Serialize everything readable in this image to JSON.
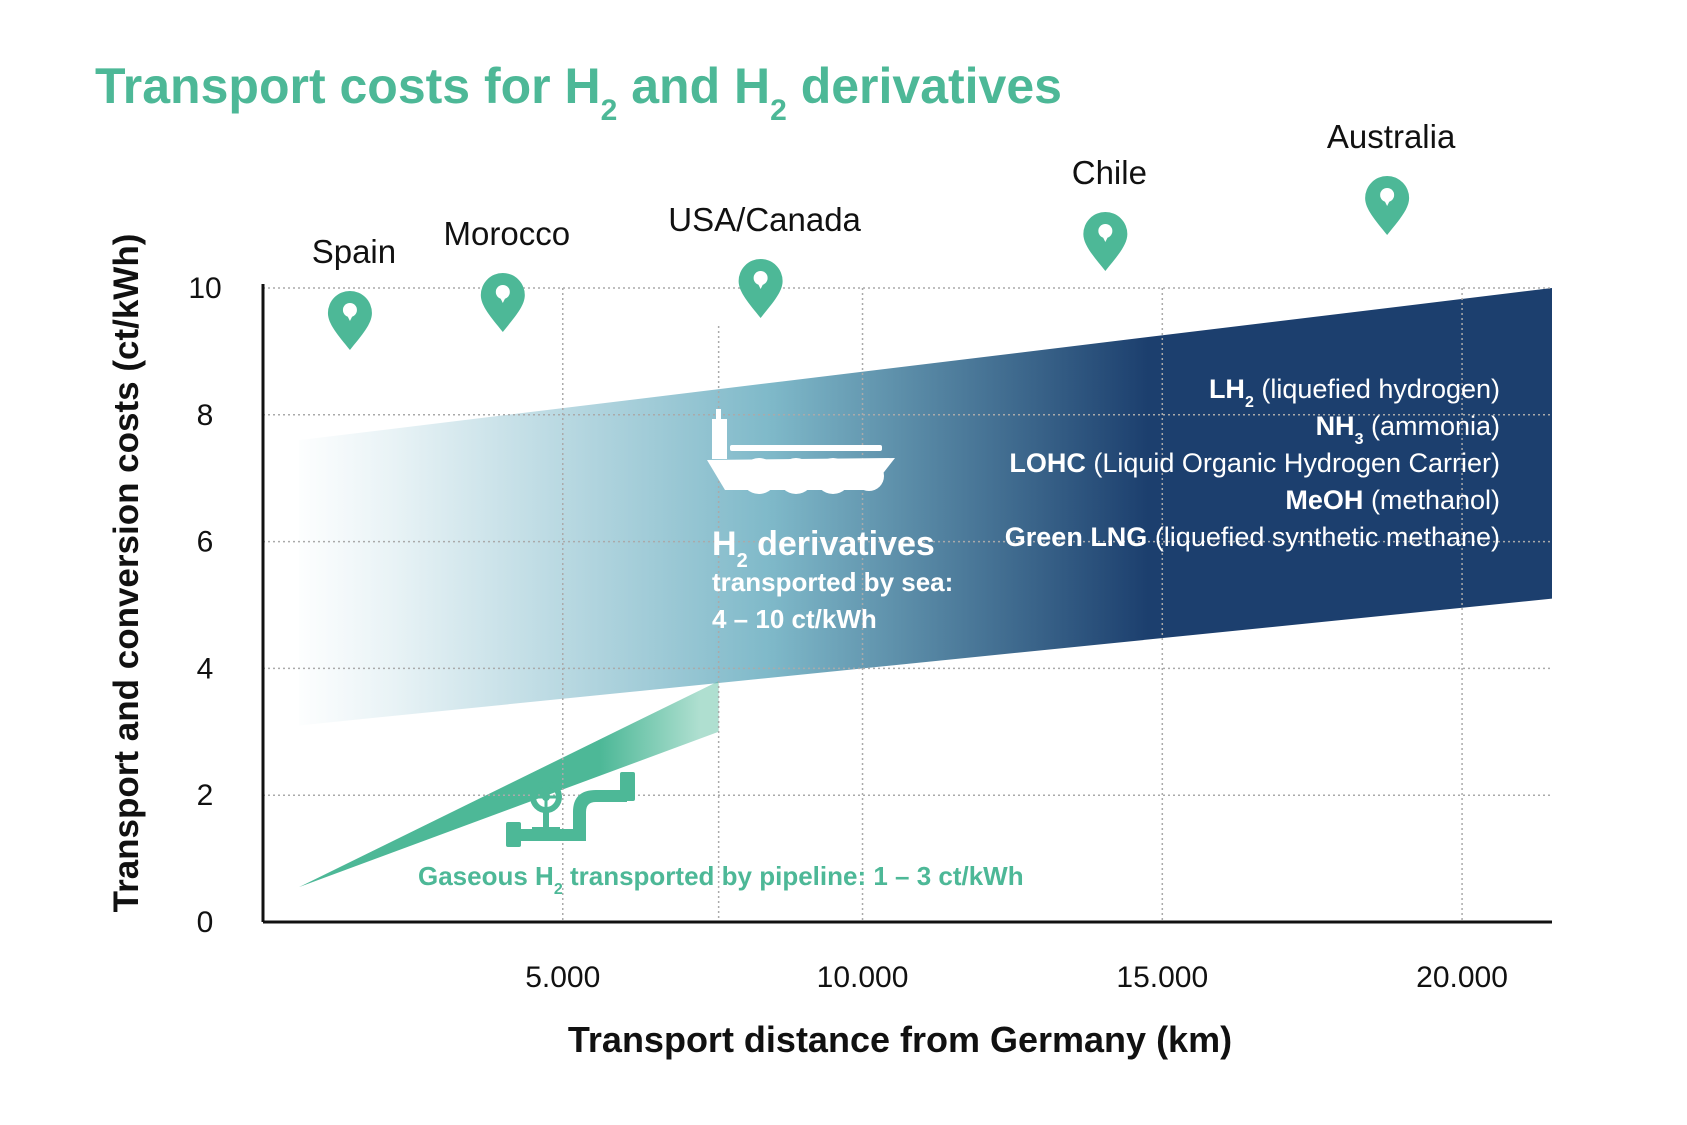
{
  "chart_data": {
    "type": "area",
    "title": {
      "part1": "Transport costs for H",
      "sub1": "2",
      "part2": " and H",
      "sub2": "2",
      "part3": " derivatives"
    },
    "xlabel": "Transport distance from Germany (km)",
    "ylabel": "Transport and conversion costs (ct/kWh)",
    "xlim": [
      0,
      21500
    ],
    "ylim": [
      0,
      10
    ],
    "x_ticks": [
      {
        "value": 5000,
        "label": "5.000"
      },
      {
        "value": 10000,
        "label": "10.000"
      },
      {
        "value": 15000,
        "label": "15.000"
      },
      {
        "value": 20000,
        "label": "20.000"
      }
    ],
    "y_ticks": [
      {
        "value": 0,
        "label": "0"
      },
      {
        "value": 2,
        "label": "2"
      },
      {
        "value": 4,
        "label": "4"
      },
      {
        "value": 6,
        "label": "6"
      },
      {
        "value": 8,
        "label": "8"
      },
      {
        "value": 10,
        "label": "10"
      }
    ],
    "grid": true,
    "series": [
      {
        "name": "H2 derivatives transported by sea",
        "kind": "band",
        "color_start": "#ffffff",
        "color_end": "#1c3f6e",
        "x": [
          600,
          21500
        ],
        "upper": [
          7.6,
          10.0
        ],
        "lower": [
          3.1,
          5.1
        ]
      },
      {
        "name": "Gaseous H2 transported by pipeline",
        "kind": "wedge",
        "color": "#4db897",
        "x": [
          600,
          7600
        ],
        "upper": [
          0.55,
          3.8
        ],
        "lower": [
          0.55,
          3.0
        ]
      }
    ],
    "locations": [
      {
        "name": "Spain",
        "x": 1450
      },
      {
        "name": "Morocco",
        "x": 4000
      },
      {
        "name": "USA/Canada",
        "x": 8300
      },
      {
        "name": "Chile",
        "x": 14050
      },
      {
        "name": "Australia",
        "x": 18750
      }
    ],
    "annotations": {
      "sea": {
        "h": "H",
        "sub": "2",
        "rest": " derivatives",
        "line2": "transported by sea:",
        "line3": "4 – 10 ct/kWh"
      },
      "pipeline": {
        "pre": "Gaseous H",
        "sub": "2",
        "post": " transported by pipeline: 1 – 3 ct/kWh"
      },
      "derivatives_list": [
        {
          "bold": "LH",
          "sub": "2",
          "normal": " (liquefied hydrogen)"
        },
        {
          "bold": "NH",
          "sub": "3",
          "normal": " (ammonia)"
        },
        {
          "bold": "LOHC",
          "sub": "",
          "normal": " (Liquid Organic Hydrogen Carrier)"
        },
        {
          "bold": "MeOH",
          "sub": "",
          "normal": " (methanol)"
        },
        {
          "bold": "Green LNG",
          "sub": "",
          "normal": " (liquefied synthetic methane)"
        }
      ]
    },
    "colors": {
      "title": "#4db897",
      "accent": "#4db897",
      "dark_blue": "#1c3f6e",
      "axis": "#111111",
      "grid": "#aaaaaa"
    },
    "icons": [
      "map-pin-icon",
      "ship-icon",
      "pipeline-valve-icon"
    ]
  }
}
